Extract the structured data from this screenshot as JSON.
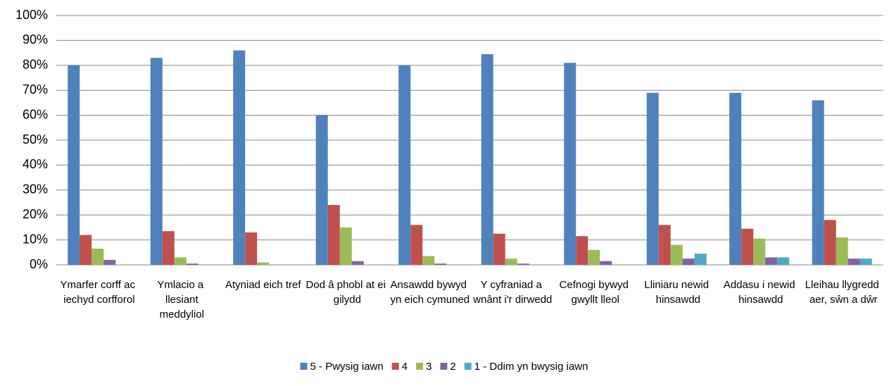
{
  "chart_data": {
    "type": "bar",
    "categories": [
      "Ymarfer corff ac iechyd corfforol",
      "Ymlacio a llesiant meddyliol",
      "Atyniad eich tref",
      "Dod â phobl at ei gilydd",
      "Ansawdd bywyd yn eich cymuned",
      "Y cyfraniad a wnânt i'r dirwedd",
      "Cefnogi bywyd gwyllt lleol",
      "Lliniaru newid hinsawdd",
      "Addasu i newid hinsawdd",
      "Lleihau llygredd aer, sŵn a dŵr"
    ],
    "series": [
      {
        "name": "5 - Pwysig iawn",
        "color": "#4f81bd",
        "values": [
          80,
          83,
          86,
          60,
          80,
          84.5,
          81,
          69,
          69,
          66
        ]
      },
      {
        "name": "4",
        "color": "#c0504d",
        "values": [
          12,
          13.5,
          13,
          24,
          16,
          12.5,
          11.5,
          16,
          14.5,
          18
        ]
      },
      {
        "name": "3",
        "color": "#9bbb59",
        "values": [
          6.5,
          3,
          1,
          15,
          3.5,
          2.5,
          6,
          8,
          10.5,
          11
        ]
      },
      {
        "name": "2",
        "color": "#8064a2",
        "values": [
          2,
          0.5,
          0,
          1.5,
          0.5,
          0.5,
          1.5,
          2.5,
          3,
          2.5
        ]
      },
      {
        "name": "1 - Ddim yn bwysig iawn",
        "color": "#4bacc6",
        "values": [
          0,
          0,
          0,
          0,
          0,
          0,
          0,
          4.5,
          3,
          2.5
        ]
      }
    ],
    "ylim": [
      0,
      100
    ],
    "yticks": [
      {
        "value": 0,
        "label": "0%"
      },
      {
        "value": 10,
        "label": "10%"
      },
      {
        "value": 20,
        "label": "20%"
      },
      {
        "value": 30,
        "label": "30%"
      },
      {
        "value": 40,
        "label": "40%"
      },
      {
        "value": 50,
        "label": "50%"
      },
      {
        "value": 60,
        "label": "60%"
      },
      {
        "value": 70,
        "label": "70%"
      },
      {
        "value": 80,
        "label": "80%"
      },
      {
        "value": 90,
        "label": "90%"
      },
      {
        "value": 100,
        "label": "100%"
      }
    ],
    "grid": true,
    "legend": "bottom"
  }
}
